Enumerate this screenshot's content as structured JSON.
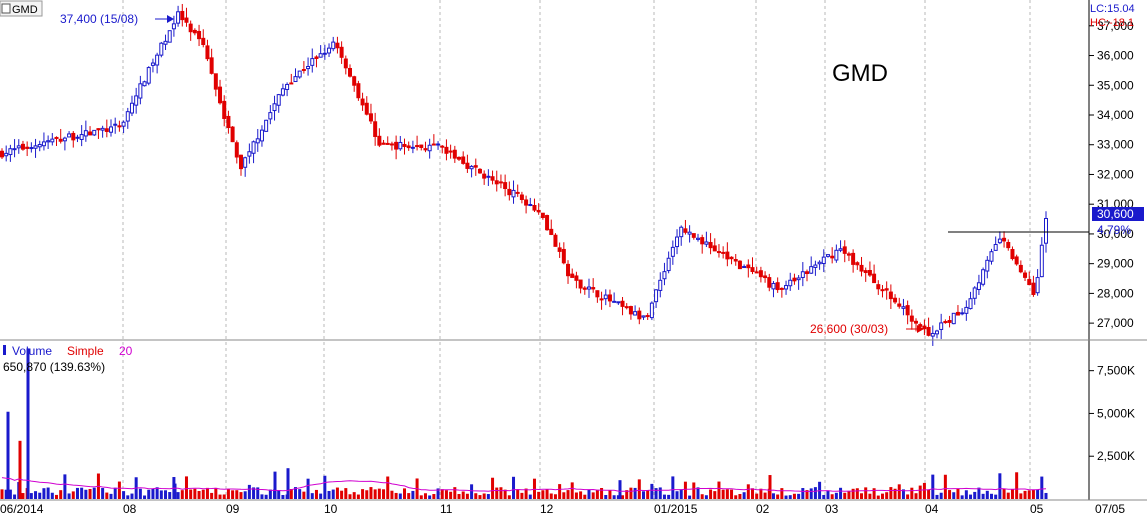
{
  "symbol_tab": "GMD",
  "title": "GMD",
  "right_info": {
    "lc": "LC:15.04",
    "hc": "HC:-18.1"
  },
  "price_axis": {
    "ticks": [
      "27,000",
      "28,000",
      "29,000",
      "30,000",
      "31,000",
      "32,000",
      "33,000",
      "34,000",
      "35,000",
      "36,000",
      "37,000"
    ],
    "min": 26500,
    "max": 37800
  },
  "last_price_label": "30,600",
  "change_label": "4.79%",
  "high_annotation": "37,400 (15/08)",
  "low_annotation": "26,600 (30/03)",
  "volume_legend": {
    "volume": "Volume",
    "simple": "Simple",
    "period": "20",
    "value": "650,870 (139.63%)"
  },
  "volume_axis": {
    "ticks": [
      "2,500K",
      "5,000K",
      "7,500K"
    ],
    "max": 9000
  },
  "time_axis": [
    "06/2014",
    "08",
    "09",
    "10",
    "11",
    "12",
    "01/2015",
    "02",
    "03",
    "04",
    "05",
    "07/05"
  ],
  "colors": {
    "up": "#1a1acc",
    "down": "#e00000",
    "ma": "#d000d0",
    "grid": "#b8b8b8",
    "axis_text": "#000000"
  },
  "chart_data": {
    "type": "candlestick",
    "title": "GMD",
    "x_range": [
      "06/2014",
      "05/2015"
    ],
    "ylim": [
      26500,
      37800
    ],
    "keypoints": [
      {
        "date": "06/2014",
        "price": 32700
      },
      {
        "date": "07/2014",
        "price": 33200
      },
      {
        "date": "08/2014",
        "price": 33600
      },
      {
        "date": "15/08/2014",
        "price": 37400,
        "label": "high"
      },
      {
        "date": "late 08/2014",
        "price": 36200
      },
      {
        "date": "09/2014",
        "price": 32200
      },
      {
        "date": "mid 09/2014",
        "price": 35000
      },
      {
        "date": "10/2014",
        "price": 36500
      },
      {
        "date": "mid 10/2014",
        "price": 33000
      },
      {
        "date": "11/2014",
        "price": 32900
      },
      {
        "date": "12/2014",
        "price": 30800
      },
      {
        "date": "mid 12/2014",
        "price": 28500
      },
      {
        "date": "end 12/2014",
        "price": 27100
      },
      {
        "date": "01/2015",
        "price": 30200
      },
      {
        "date": "02/2015",
        "price": 28100
      },
      {
        "date": "03/2015",
        "price": 29500
      },
      {
        "date": "30/03/2015",
        "price": 26600,
        "label": "low"
      },
      {
        "date": "04/2015",
        "price": 27500
      },
      {
        "date": "late 04/2015",
        "price": 29900
      },
      {
        "date": "05/2015",
        "price": 28000
      },
      {
        "date": "07/05/2015",
        "price": 30600,
        "label": "last"
      }
    ],
    "resistance_line": 30300,
    "volume": {
      "max_spike": 8800,
      "spikes": [
        {
          "date": "06/2014",
          "value": 5100
        },
        {
          "date": "06/2014",
          "value": 3400
        },
        {
          "date": "mid 09/2014",
          "value": 8800
        },
        {
          "date": "09/2014",
          "value": 1800
        }
      ],
      "ma_period": 20
    }
  }
}
